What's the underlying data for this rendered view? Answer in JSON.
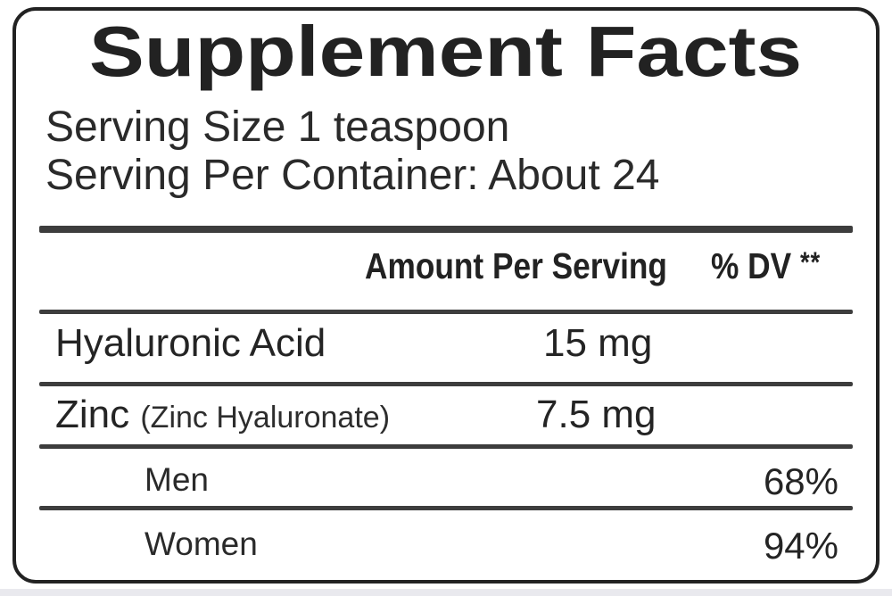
{
  "label": {
    "title": "Supplement Facts",
    "serving_size_line": "Serving Size 1 teaspoon",
    "servings_per_container_line": "Serving Per Container: About 24",
    "columns": {
      "amount_header": "Amount Per Serving",
      "dv_header": "% DV",
      "dv_footnote_marker": "**"
    },
    "rows": [
      {
        "name": "Hyaluronic Acid",
        "detail": "",
        "amount": "15 mg",
        "dv": ""
      },
      {
        "name": "Zinc",
        "detail": "(Zinc Hyaluronate)",
        "amount": "7.5 mg",
        "dv": ""
      },
      {
        "name": "Men",
        "detail": "",
        "amount": "",
        "dv": "68%"
      },
      {
        "name": "Women",
        "detail": "",
        "amount": "",
        "dv": "94%"
      }
    ],
    "colors": {
      "ink": "#222222",
      "rule": "#3d3d3d",
      "background": "#ffffff",
      "page_edge": "#e9e9ee"
    }
  }
}
